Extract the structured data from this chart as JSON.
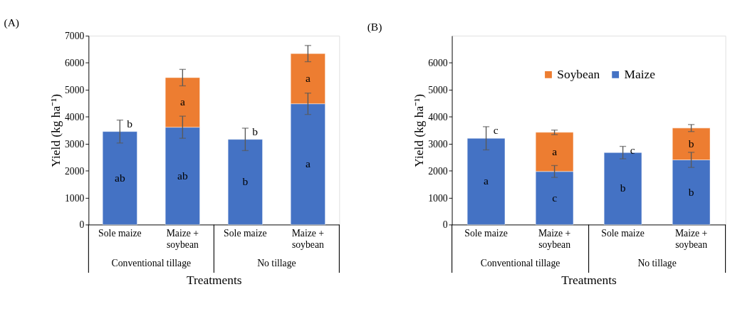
{
  "chart_data": [
    {
      "type": "bar",
      "title": "(A)",
      "xlabel": "Treatments",
      "ylabel": "Yield (kg ha⁻¹)",
      "stacked": true,
      "grid": false,
      "categories": [
        "Sole maize",
        "Maize + soybean",
        "Sole maize",
        "Maize + soybean"
      ],
      "ylim": [
        0,
        7000
      ],
      "yticks": [
        0,
        1000,
        2000,
        3000,
        4000,
        5000,
        6000,
        7000
      ],
      "series": [
        {
          "color": "#4472c4",
          "values": [
            3450,
            3610,
            3160,
            4480
          ],
          "errors": [
            425,
            410,
            415,
            395
          ],
          "value_labels": [
            "ab",
            "ab",
            "b",
            "a"
          ]
        },
        {
          "color": "#ed7d31",
          "values": [
            null,
            1840,
            null,
            1860
          ],
          "errors": [
            null,
            305,
            null,
            300
          ],
          "value_labels": [
            null,
            "a",
            null,
            "a"
          ]
        }
      ],
      "totals": [
        "b",
        null,
        "b",
        null
      ],
      "annotations": [
        "Conventional tillage",
        "No tillage"
      ]
    },
    {
      "type": "bar",
      "title": "(B)",
      "xlabel": "Treatments",
      "ylabel": "Yield (kg ha⁻¹)",
      "stacked": true,
      "grid": false,
      "legend": "top",
      "categories": [
        "Sole maize",
        "Maize + soybean",
        "Sole maize",
        "Maize + soybean"
      ],
      "ylim": [
        0,
        7000
      ],
      "yticks": [
        0,
        1000,
        2000,
        3000,
        4000,
        5000,
        6000
      ],
      "series": [
        {
          "name": "Maize",
          "color": "#4472c4",
          "values": [
            3200,
            1970,
            2670,
            2400
          ],
          "errors": [
            430,
            220,
            230,
            280
          ],
          "value_labels": [
            "a",
            "c",
            "b",
            "b"
          ]
        },
        {
          "name": "Soybean",
          "color": "#ed7d31",
          "values": [
            null,
            1450,
            null,
            1180
          ],
          "errors": [
            null,
            85,
            null,
            130
          ],
          "value_labels": [
            null,
            "a",
            null,
            "b"
          ]
        }
      ],
      "totals": [
        "c",
        null,
        "c",
        null
      ],
      "annotations": [
        "Conventional tillage",
        "No tillage"
      ]
    }
  ]
}
